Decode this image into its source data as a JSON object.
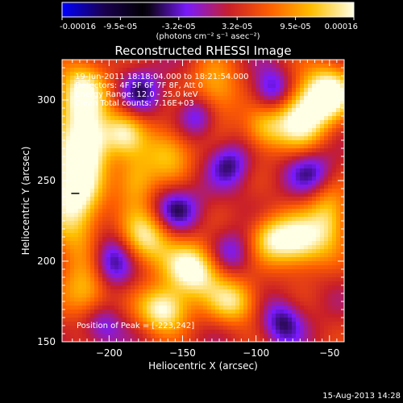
{
  "chart_data": {
    "type": "heatmap",
    "title": "Reconstructed RHESSI Image",
    "xlabel": "Heliocentric X (arcsec)",
    "ylabel": "Heliocentric Y (arcsec)",
    "xlim": [
      -232,
      -40
    ],
    "ylim": [
      150,
      325
    ],
    "xticks": [
      -200,
      -150,
      -100,
      -50
    ],
    "yticks": [
      150,
      200,
      250,
      300
    ],
    "colorbar": {
      "range": [
        -0.00016,
        0.00016
      ],
      "tick_labels": [
        "-0.00016",
        "-9.5e-05",
        "-3.2e-05",
        "3.2e-05",
        "9.5e-05",
        "0.00016"
      ],
      "units": "(photons cm⁻² s⁻¹ asec⁻²)",
      "colormap": [
        "#0000ff",
        "#1a0050",
        "#000000",
        "#7a1aff",
        "#c81e2a",
        "#ff6000",
        "#ffc000",
        "#ffffe6"
      ]
    },
    "annotations": [
      "19-Jun-2011 18:18:04.000 to 18:21:54.000",
      "Detectors: 4F 5F 6F 7F 8F, Att 0",
      "Energy Range: 12.0 - 25.0 keV",
      "Clean    Total counts: 7.16E+03"
    ],
    "peak_label": "Position of Peak = [-223,242]",
    "peak": [
      -223,
      242
    ],
    "blobs": [
      {
        "x": -223,
        "y": 247,
        "sx": 13,
        "sy": 28,
        "v": 1.0
      },
      {
        "x": -212,
        "y": 275,
        "sx": 10,
        "sy": 12,
        "v": 0.55
      },
      {
        "x": -218,
        "y": 305,
        "sx": 12,
        "sy": 14,
        "v": 0.75
      },
      {
        "x": -215,
        "y": 180,
        "sx": 12,
        "sy": 12,
        "v": 0.55
      },
      {
        "x": -190,
        "y": 280,
        "sx": 10,
        "sy": 10,
        "v": 0.6
      },
      {
        "x": -182,
        "y": 250,
        "sx": 10,
        "sy": 12,
        "v": 0.55
      },
      {
        "x": -160,
        "y": 268,
        "sx": 12,
        "sy": 12,
        "v": 0.55
      },
      {
        "x": -175,
        "y": 215,
        "sx": 12,
        "sy": 12,
        "v": 0.75
      },
      {
        "x": -142,
        "y": 195,
        "sx": 14,
        "sy": 12,
        "v": 0.95
      },
      {
        "x": -163,
        "y": 170,
        "sx": 12,
        "sy": 10,
        "v": 0.85
      },
      {
        "x": -115,
        "y": 175,
        "sx": 12,
        "sy": 10,
        "v": 0.65
      },
      {
        "x": -128,
        "y": 305,
        "sx": 12,
        "sy": 14,
        "v": 0.55
      },
      {
        "x": -92,
        "y": 215,
        "sx": 10,
        "sy": 10,
        "v": 0.45
      },
      {
        "x": -72,
        "y": 212,
        "sx": 14,
        "sy": 12,
        "v": 0.85
      },
      {
        "x": -50,
        "y": 228,
        "sx": 10,
        "sy": 14,
        "v": 0.6
      },
      {
        "x": -70,
        "y": 290,
        "sx": 14,
        "sy": 14,
        "v": 0.9
      },
      {
        "x": -50,
        "y": 305,
        "sx": 12,
        "sy": 12,
        "v": 0.85
      },
      {
        "x": -95,
        "y": 282,
        "sx": 10,
        "sy": 10,
        "v": 0.5
      },
      {
        "x": -118,
        "y": 260,
        "sx": 10,
        "sy": 10,
        "v": -0.45
      },
      {
        "x": -198,
        "y": 200,
        "sx": 10,
        "sy": 12,
        "v": -0.55
      },
      {
        "x": -155,
        "y": 232,
        "sx": 12,
        "sy": 10,
        "v": -0.5
      },
      {
        "x": -178,
        "y": 305,
        "sx": 10,
        "sy": 10,
        "v": -0.45
      },
      {
        "x": -140,
        "y": 290,
        "sx": 10,
        "sy": 10,
        "v": -0.5
      },
      {
        "x": -88,
        "y": 305,
        "sx": 10,
        "sy": 10,
        "v": -0.6
      },
      {
        "x": -62,
        "y": 255,
        "sx": 12,
        "sy": 10,
        "v": -0.45
      },
      {
        "x": -118,
        "y": 205,
        "sx": 12,
        "sy": 10,
        "v": -0.4
      },
      {
        "x": -82,
        "y": 162,
        "sx": 10,
        "sy": 10,
        "v": -0.5
      },
      {
        "x": -205,
        "y": 160,
        "sx": 10,
        "sy": 10,
        "v": -0.4
      }
    ]
  },
  "footer": {
    "date": "15-Aug-2013 14:28"
  }
}
